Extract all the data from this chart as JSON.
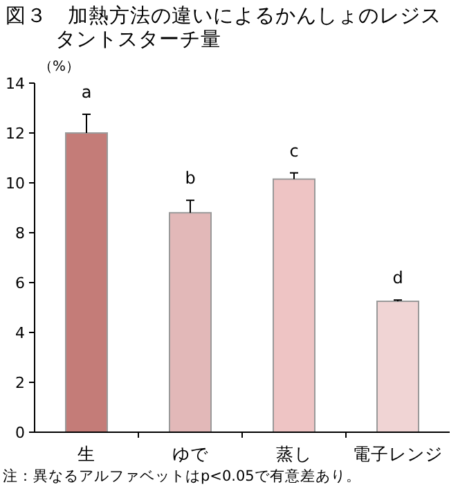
{
  "chart_data": {
    "type": "bar",
    "title": "図３　加熱方法の違いによるかんしょのレジスタントスターチ量",
    "ylabel": "（%）",
    "categories": [
      "生",
      "ゆで",
      "蒸し",
      "電子レンジ"
    ],
    "values": [
      12.0,
      8.8,
      10.15,
      5.25
    ],
    "errors": [
      [
        12.0,
        12.75
      ],
      [
        8.8,
        9.3
      ],
      [
        10.15,
        10.4
      ],
      [
        5.25,
        5.3
      ]
    ],
    "colors": [
      "#c47c78",
      "#e2b8b8",
      "#eec4c4",
      "#f0d4d4"
    ],
    "ylim": [
      0,
      14
    ],
    "yticks": [
      0,
      2,
      4,
      6,
      8,
      10,
      12,
      14
    ],
    "grid": false,
    "annotations": [
      "a",
      "b",
      "c",
      "d",
      "注：異なるアルファベットはp<0.05で有意差あり。"
    ]
  }
}
